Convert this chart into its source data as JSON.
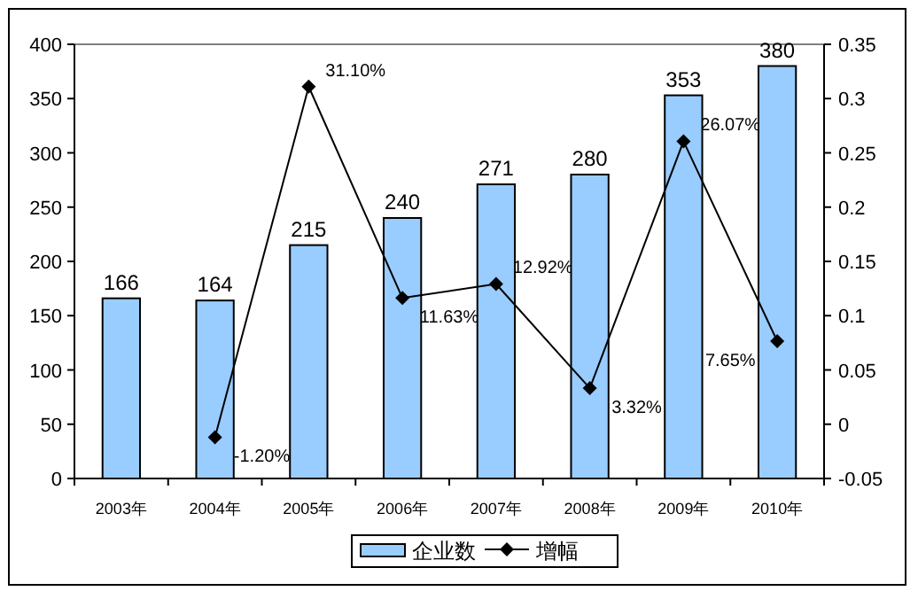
{
  "chart_data": {
    "type": "bar",
    "categories": [
      "2003年",
      "2004年",
      "2005年",
      "2006年",
      "2007年",
      "2008年",
      "2009年",
      "2010年"
    ],
    "series": [
      {
        "name": "企业数",
        "type": "bar",
        "color": "#99ccff",
        "values": [
          166,
          164,
          215,
          240,
          271,
          280,
          353,
          380
        ],
        "value_labels": [
          "166",
          "164",
          "215",
          "240",
          "271",
          "280",
          "353",
          "380"
        ]
      },
      {
        "name": "增幅",
        "type": "line",
        "axis": "y2",
        "color": "#000000",
        "marker": "diamond",
        "values": [
          null,
          -0.012,
          0.311,
          0.1163,
          0.1292,
          0.0332,
          0.2607,
          0.0765
        ],
        "value_labels": [
          null,
          "-1.20%",
          "31.10%",
          "11.63%",
          "12.92%",
          "3.32%",
          "26.07%",
          "7.65%"
        ]
      }
    ],
    "ylim": [
      0,
      400
    ],
    "yticks": [
      0,
      50,
      100,
      150,
      200,
      250,
      300,
      350,
      400
    ],
    "y2lim": [
      -0.05,
      0.35
    ],
    "y2ticks": [
      -0.05,
      0,
      0.05,
      0.1,
      0.15,
      0.2,
      0.25,
      0.3,
      0.35
    ],
    "grid": false,
    "legend": "bottom"
  }
}
